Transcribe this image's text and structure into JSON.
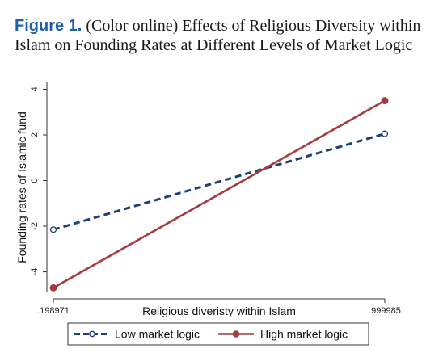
{
  "caption": {
    "label": "Figure 1.",
    "text": " (Color online) Effects of Religious Diversity within Islam on Founding Rates at Different Levels of Market Logic"
  },
  "chart_data": {
    "type": "line",
    "xlabel": "Religious diveristy within Islam",
    "ylabel": "Founding rates of Islamic fund",
    "x": [
      0.198971,
      0.999985
    ],
    "x_tick_labels": [
      ".198971",
      ".999985"
    ],
    "y_ticks": [
      -4,
      -2,
      0,
      2,
      4
    ],
    "ylim": [
      -4.9,
      4.3
    ],
    "grid": false,
    "legend_position": "bottom",
    "series": [
      {
        "name": "Low market logic",
        "values": [
          -2.15,
          2.05
        ],
        "color": "#1f3f77",
        "style": "dashed",
        "marker": "open-circle"
      },
      {
        "name": "High market logic",
        "values": [
          -4.7,
          3.5
        ],
        "color": "#a53a3f",
        "style": "solid",
        "marker": "filled-circle"
      }
    ]
  }
}
